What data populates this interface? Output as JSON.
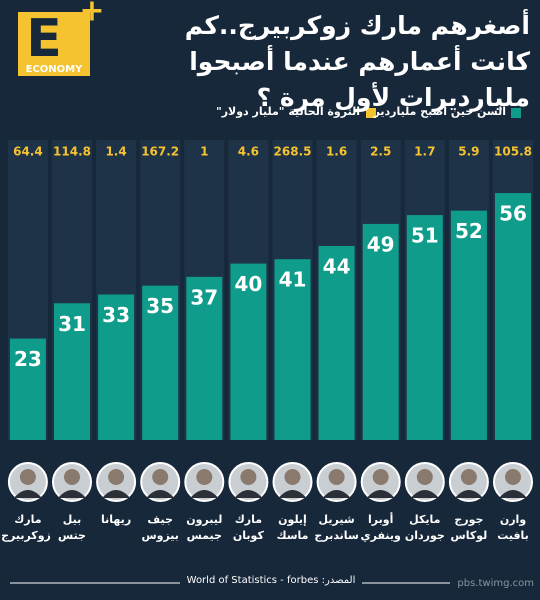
{
  "chart_data": {
    "type": "bar",
    "title": "أصغرهم مارك زوكربيرج..كم كانت أعمارهم عندما أصبحوا مليارديرات لأول مرة ؟",
    "logo": {
      "letter": "E",
      "word": "ECONOMY"
    },
    "categories": [
      "وارن بافيت",
      "جورج لوكاس",
      "مايكل جوردان",
      "أوبرا وينفري",
      "شيريل ساندبرج",
      "إيلون ماسك",
      "مارك كوبان",
      "ليبرون جيمس",
      "جيف بيزوس",
      "ريهانا",
      "بيل جتس",
      "مارك زوكربيرج"
    ],
    "series": [
      {
        "name": "السن حين أصبح ملياردير",
        "color": "#0f9c8b",
        "values": [
          56,
          52,
          51,
          49,
          44,
          41,
          40,
          37,
          35,
          33,
          31,
          23
        ]
      },
      {
        "name": "الثروة الحالية \"مليار دولار\"",
        "color": "#f5c230",
        "values": [
          105.8,
          5.9,
          1.7,
          2.5,
          1.6,
          268.5,
          4.6,
          1,
          167.2,
          1.4,
          114.8,
          64.4
        ]
      }
    ],
    "source": "المصدر: World of Statistics - forbes",
    "watermark": "pbs.twimg.com"
  }
}
